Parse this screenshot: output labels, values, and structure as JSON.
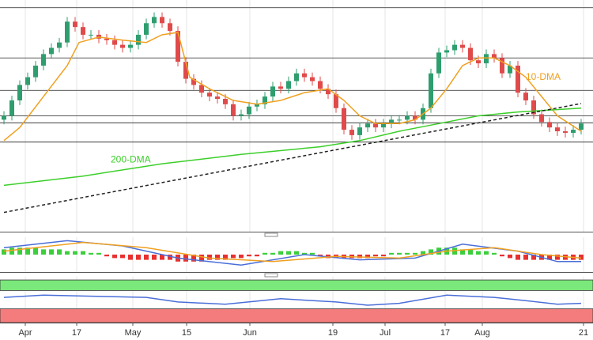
{
  "chart_data": [
    {
      "type": "candlestick",
      "xlim": [
        -0.5,
        74.5
      ],
      "ylim": [
        0,
        300
      ],
      "color_up": "#2e9e6e",
      "color_down": "#e04a4a",
      "open": [
        145,
        150,
        170,
        190,
        200,
        215,
        230,
        238,
        245,
        272,
        265,
        255,
        255,
        250,
        248,
        242,
        238,
        242,
        255,
        270,
        278,
        270,
        260,
        220,
        198,
        190,
        180,
        175,
        172,
        165,
        150,
        152,
        162,
        165,
        175,
        188,
        185,
        195,
        205,
        200,
        195,
        185,
        178,
        160,
        132,
        125,
        135,
        140,
        135,
        140,
        145,
        145,
        150,
        145,
        160,
        205,
        232,
        235,
        242,
        238,
        222,
        218,
        230,
        225,
        205,
        215,
        180,
        170,
        152,
        142,
        135,
        130,
        128,
        132
      ],
      "high": [
        156,
        176,
        196,
        206,
        221,
        236,
        244,
        251,
        278,
        278,
        271,
        261,
        261,
        256,
        254,
        248,
        248,
        261,
        276,
        284,
        284,
        276,
        266,
        226,
        204,
        196,
        186,
        181,
        178,
        171,
        158,
        168,
        171,
        181,
        194,
        194,
        201,
        211,
        211,
        206,
        201,
        191,
        184,
        166,
        138,
        141,
        146,
        146,
        146,
        151,
        151,
        156,
        156,
        166,
        211,
        238,
        241,
        248,
        248,
        244,
        228,
        236,
        236,
        231,
        221,
        221,
        186,
        176,
        158,
        148,
        141,
        136,
        138,
        146
      ],
      "low": [
        139,
        144,
        164,
        184,
        194,
        209,
        224,
        232,
        239,
        259,
        249,
        249,
        244,
        242,
        236,
        232,
        232,
        236,
        249,
        264,
        264,
        254,
        214,
        192,
        184,
        174,
        169,
        166,
        159,
        144,
        144,
        146,
        156,
        159,
        169,
        179,
        179,
        189,
        194,
        189,
        179,
        172,
        154,
        126,
        119,
        119,
        129,
        129,
        129,
        134,
        139,
        139,
        139,
        139,
        154,
        199,
        226,
        229,
        232,
        216,
        212,
        212,
        219,
        199,
        199,
        174,
        164,
        146,
        136,
        129,
        124,
        122,
        122,
        126
      ],
      "close": [
        150,
        170,
        190,
        200,
        215,
        230,
        238,
        245,
        272,
        265,
        255,
        255,
        250,
        248,
        242,
        238,
        242,
        255,
        270,
        278,
        270,
        260,
        220,
        198,
        190,
        180,
        175,
        172,
        165,
        150,
        152,
        162,
        165,
        175,
        188,
        185,
        195,
        205,
        200,
        195,
        185,
        178,
        160,
        132,
        125,
        135,
        140,
        135,
        140,
        145,
        145,
        150,
        145,
        160,
        205,
        232,
        235,
        242,
        238,
        222,
        218,
        230,
        225,
        205,
        215,
        180,
        170,
        152,
        142,
        135,
        130,
        128,
        132,
        140
      ],
      "levels": [
        290,
        225,
        183,
        150,
        141,
        116
      ],
      "lines": [
        {
          "name": "10-DMA",
          "color": "#f0a020",
          "label_at": [
            66,
            200
          ],
          "x": [
            0,
            2,
            5,
            8,
            9.5,
            12,
            15,
            18,
            20,
            22,
            23.5,
            26,
            29,
            32,
            35,
            38,
            41,
            43,
            45,
            47,
            50,
            52,
            54,
            56,
            58,
            60,
            62,
            64,
            66,
            68,
            70,
            73
          ],
          "values": [
            118,
            135,
            175,
            215,
            245,
            252,
            248,
            245,
            255,
            258,
            200,
            185,
            170,
            165,
            170,
            180,
            185,
            170,
            150,
            140,
            140,
            145,
            160,
            185,
            215,
            225,
            225,
            215,
            200,
            175,
            150,
            130
          ]
        },
        {
          "name": "200-DMA",
          "color": "#3ccf2a",
          "label_at": [
            13.5,
            93
          ],
          "x": [
            0,
            10,
            20,
            30,
            40,
            45,
            50,
            55,
            60,
            65,
            73
          ],
          "values": [
            60,
            72,
            88,
            100,
            110,
            118,
            130,
            140,
            150,
            155,
            160
          ]
        },
        {
          "style": "dashed",
          "color": "#222",
          "x": [
            0,
            73
          ],
          "values": [
            25,
            166
          ]
        }
      ]
    },
    {
      "type": "macd",
      "xlim": [
        -0.5,
        74.5
      ],
      "ylim": [
        -10,
        10
      ],
      "color_up": "#3ccf3c",
      "color_down": "#e83030",
      "values": [
        3,
        4,
        4,
        4,
        4,
        3,
        3,
        3,
        2,
        2,
        2,
        1,
        1,
        -1,
        -2,
        -2,
        -3,
        -3,
        -3,
        -3,
        -3,
        -3,
        -4,
        -4,
        -4,
        -4,
        -3,
        -3,
        -3,
        -2,
        -2,
        -1,
        -1,
        1,
        1,
        2,
        2,
        2,
        1,
        1,
        -1,
        -2,
        -2,
        -2,
        -2,
        -2,
        -2,
        -1,
        -1,
        1,
        1,
        1,
        1,
        2,
        3,
        4,
        4,
        4,
        3,
        3,
        2,
        2,
        1,
        -1,
        -2,
        -3,
        -3,
        -3,
        -3,
        -3,
        -3,
        -3,
        -3,
        -3
      ],
      "lines": [
        {
          "color": "#4a6ed8",
          "x": [
            0,
            8,
            15,
            22,
            30,
            38,
            45,
            52,
            58,
            65,
            70,
            73
          ],
          "values": [
            4,
            8,
            5,
            -2,
            -6,
            0,
            -3,
            -2,
            6,
            2,
            -4,
            -4
          ]
        },
        {
          "color": "#f0a020",
          "x": [
            0,
            10,
            18,
            26,
            34,
            42,
            50,
            56,
            62,
            68,
            73
          ],
          "values": [
            2,
            7,
            4,
            -2,
            -4,
            -1,
            -2,
            2,
            4,
            0,
            -2
          ]
        }
      ]
    },
    {
      "type": "rsi",
      "xlim": [
        -0.5,
        74.5
      ],
      "ylim": [
        0,
        100
      ],
      "bands": [
        {
          "from": 70,
          "to": 93,
          "color": "#7be87b"
        },
        {
          "from": 0,
          "to": 30,
          "color": "#f47c7c"
        }
      ],
      "lines": [
        {
          "color": "#4a6ed8",
          "x": [
            0,
            5,
            10,
            18,
            22,
            28,
            35,
            42,
            46,
            50,
            56,
            62,
            66,
            70,
            73
          ],
          "values": [
            55,
            60,
            58,
            55,
            45,
            40,
            52,
            45,
            38,
            42,
            60,
            55,
            48,
            40,
            42
          ]
        }
      ],
      "xticks": [
        {
          "value": 2.7,
          "label": "Apr"
        },
        {
          "value": 9.2,
          "label": "17"
        },
        {
          "value": 16.3,
          "label": "May"
        },
        {
          "value": 23.1,
          "label": "15"
        },
        {
          "value": 31.1,
          "label": "Jun"
        },
        {
          "value": 41.6,
          "label": "19"
        },
        {
          "value": 48.2,
          "label": "Jul"
        },
        {
          "value": 55.8,
          "label": "17"
        },
        {
          "value": 60.5,
          "label": "Aug"
        },
        {
          "value": 73.3,
          "label": "21"
        }
      ]
    }
  ]
}
